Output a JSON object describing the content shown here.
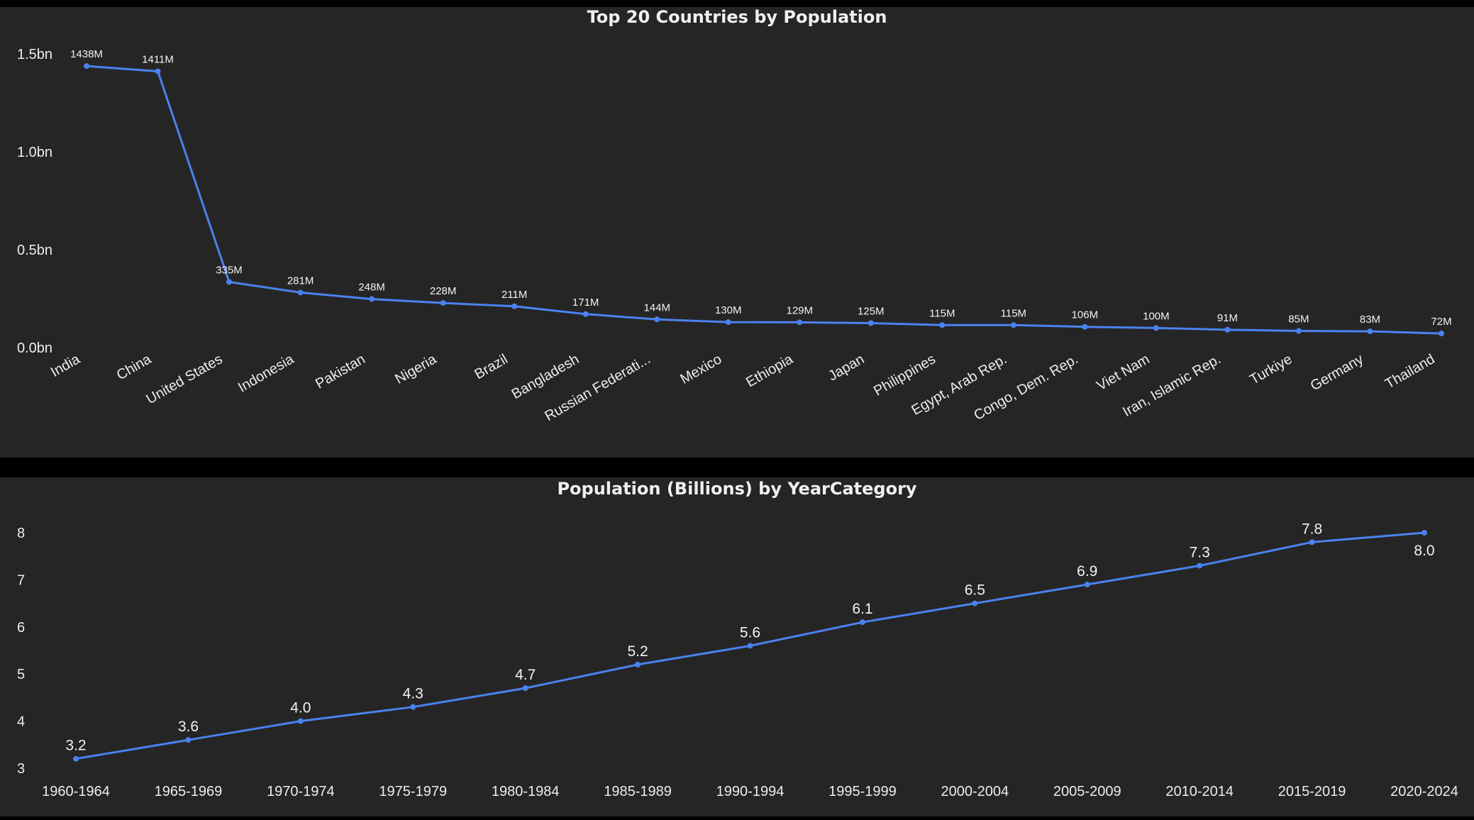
{
  "colors": {
    "line": "#4a82f0",
    "panel": "#252525",
    "background": "#000000",
    "text": "#ededed"
  },
  "chart_data": [
    {
      "type": "line",
      "title": "Top 20 Countries by Population",
      "categories": [
        "India",
        "China",
        "United States",
        "Indonesia",
        "Pakistan",
        "Nigeria",
        "Brazil",
        "Bangladesh",
        "Russian Federati...",
        "Mexico",
        "Ethiopia",
        "Japan",
        "Philippines",
        "Egypt, Arab Rep.",
        "Congo, Dem. Rep.",
        "Viet Nam",
        "Iran, Islamic Rep.",
        "Turkiye",
        "Germany",
        "Thailand"
      ],
      "values": [
        1438,
        1411,
        335,
        281,
        248,
        228,
        211,
        171,
        144,
        130,
        129,
        125,
        115,
        115,
        106,
        100,
        91,
        85,
        83,
        72
      ],
      "data_labels": [
        "1438M",
        "1411M",
        "335M",
        "281M",
        "248M",
        "228M",
        "211M",
        "171M",
        "144M",
        "130M",
        "129M",
        "125M",
        "115M",
        "115M",
        "106M",
        "100M",
        "91M",
        "85M",
        "83M",
        "72M"
      ],
      "y_ticks": [
        0,
        500,
        1000,
        1500
      ],
      "y_tick_labels": [
        "0.0bn",
        "0.5bn",
        "1.0bn",
        "1.5bn"
      ],
      "ylim": [
        0,
        1500
      ],
      "y_unit": "millions"
    },
    {
      "type": "line",
      "title": "Population (Billions) by YearCategory",
      "categories": [
        "1960-1964",
        "1965-1969",
        "1970-1974",
        "1975-1979",
        "1980-1984",
        "1985-1989",
        "1990-1994",
        "1995-1999",
        "2000-2004",
        "2005-2009",
        "2010-2014",
        "2015-2019",
        "2020-2024"
      ],
      "values": [
        3.2,
        3.6,
        4.0,
        4.3,
        4.7,
        5.2,
        5.6,
        6.1,
        6.5,
        6.9,
        7.3,
        7.8,
        8.0
      ],
      "data_labels": [
        "3.2",
        "3.6",
        "4.0",
        "4.3",
        "4.7",
        "5.2",
        "5.6",
        "6.1",
        "6.5",
        "6.9",
        "7.3",
        "7.8",
        "8.0"
      ],
      "y_ticks": [
        3,
        4,
        5,
        6,
        7,
        8
      ],
      "y_tick_labels": [
        "3",
        "4",
        "5",
        "6",
        "7",
        "8"
      ],
      "ylim": [
        3,
        8
      ]
    }
  ]
}
